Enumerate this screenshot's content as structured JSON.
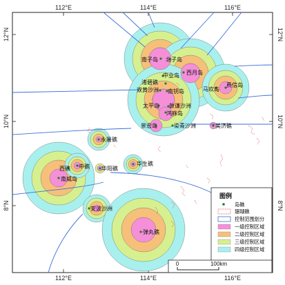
{
  "map": {
    "lon_labels": [
      "112°E",
      "114°E",
      "116°E"
    ],
    "lat_labels": [
      "12°N",
      "10°N",
      "8°N"
    ],
    "places": [
      {
        "name": "南子岛"
      },
      {
        "name": "北子岛"
      },
      {
        "name": "中业岛"
      },
      {
        "name": "西月岛"
      },
      {
        "name": "渚碧礁"
      },
      {
        "name": "双黄沙洲"
      },
      {
        "name": "南钥岛"
      },
      {
        "name": "马欢岛"
      },
      {
        "name": "费信岛"
      },
      {
        "name": "太平岛"
      },
      {
        "name": "敦谦沙洲"
      },
      {
        "name": "鸿庥岛"
      },
      {
        "name": "景宏岛"
      },
      {
        "name": "染青沙洲"
      },
      {
        "name": "美济礁"
      },
      {
        "name": "永暑礁"
      },
      {
        "name": "华生礁"
      },
      {
        "name": "中礁"
      },
      {
        "name": "西礁"
      },
      {
        "name": "华阳礁"
      },
      {
        "name": "南威岛"
      },
      {
        "name": "安波沙洲"
      },
      {
        "name": "弹丸礁"
      }
    ],
    "legend": {
      "title": "图例",
      "items": [
        {
          "label": "岛礁",
          "symbol": "dot",
          "color": "#2a7a2a"
        },
        {
          "label": "珊瑚礁",
          "symbol": "dashed-box",
          "color": "#e05050"
        },
        {
          "label": "控制范围划分",
          "symbol": "box",
          "color": "#3b6fd8"
        },
        {
          "label": "一级控制区域",
          "symbol": "box",
          "color": "#f58fd8"
        },
        {
          "label": "二级控制区域",
          "symbol": "box",
          "color": "#f6c07a"
        },
        {
          "label": "三级控制区域",
          "symbol": "box",
          "color": "#d6f08f"
        },
        {
          "label": "四级控制区域",
          "symbol": "box",
          "color": "#a8f0ee"
        }
      ]
    },
    "scale": {
      "start": "0",
      "end": "100km"
    },
    "colors": {
      "level1": "#f58fd8",
      "level2": "#f6c07a",
      "level3": "#d6f08f",
      "level4": "#a8f0ee",
      "boundary": "#3b6fd8",
      "reef": "#e05050",
      "island": "#2a7a2a"
    }
  }
}
